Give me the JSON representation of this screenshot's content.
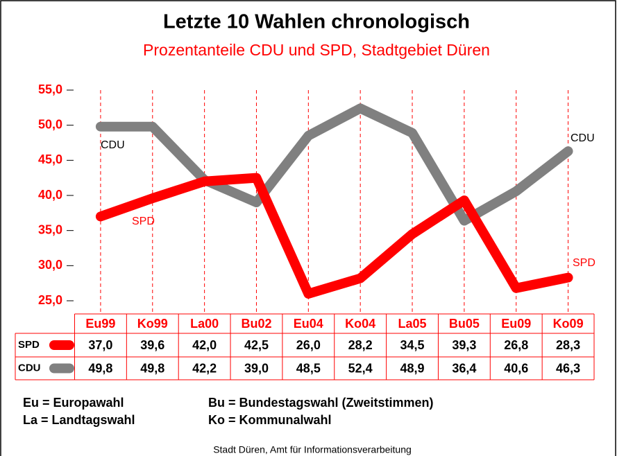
{
  "chart_data": {
    "type": "line",
    "title": "Letzte 10 Wahlen chronologisch",
    "subtitle": "Prozentanteile CDU und SPD, Stadtgebiet Düren",
    "categories": [
      "Eu99",
      "Ko99",
      "La00",
      "Bu02",
      "Eu04",
      "Ko04",
      "La05",
      "Bu05",
      "Eu09",
      "Ko09"
    ],
    "series": [
      {
        "name": "CDU",
        "color": "#808080",
        "values": [
          49.8,
          49.8,
          42.2,
          39.0,
          48.5,
          52.4,
          48.9,
          36.4,
          40.6,
          46.3
        ],
        "value_labels": [
          "49,8",
          "49,8",
          "42,2",
          "39,0",
          "48,5",
          "52,4",
          "48,9",
          "36,4",
          "40,6",
          "46,3"
        ]
      },
      {
        "name": "SPD",
        "color": "#ff0000",
        "values": [
          37.0,
          39.6,
          42.0,
          42.5,
          26.0,
          28.2,
          34.5,
          39.3,
          26.8,
          28.3
        ],
        "value_labels": [
          "37,0",
          "39,6",
          "42,0",
          "42,5",
          "26,0",
          "28,2",
          "34,5",
          "39,3",
          "26,8",
          "28,3"
        ]
      }
    ],
    "ylim": [
      25,
      55
    ],
    "yticks": [
      {
        "value": 25,
        "label": "25,0"
      },
      {
        "value": 30,
        "label": "30,0"
      },
      {
        "value": 35,
        "label": "35,0"
      },
      {
        "value": 40,
        "label": "40,0"
      },
      {
        "value": 45,
        "label": "45,0"
      },
      {
        "value": 50,
        "label": "50,0"
      },
      {
        "value": 55,
        "label": "55,0"
      }
    ],
    "grid": true,
    "annotations": [
      "Eu = Europawahl",
      "Bu = Bundestagswahl (Zweitstimmen)",
      "La = Landtagswahl",
      "Ko = Kommunalwahl"
    ],
    "source": "Stadt Düren, Amt für Informationsverarbeitung"
  }
}
